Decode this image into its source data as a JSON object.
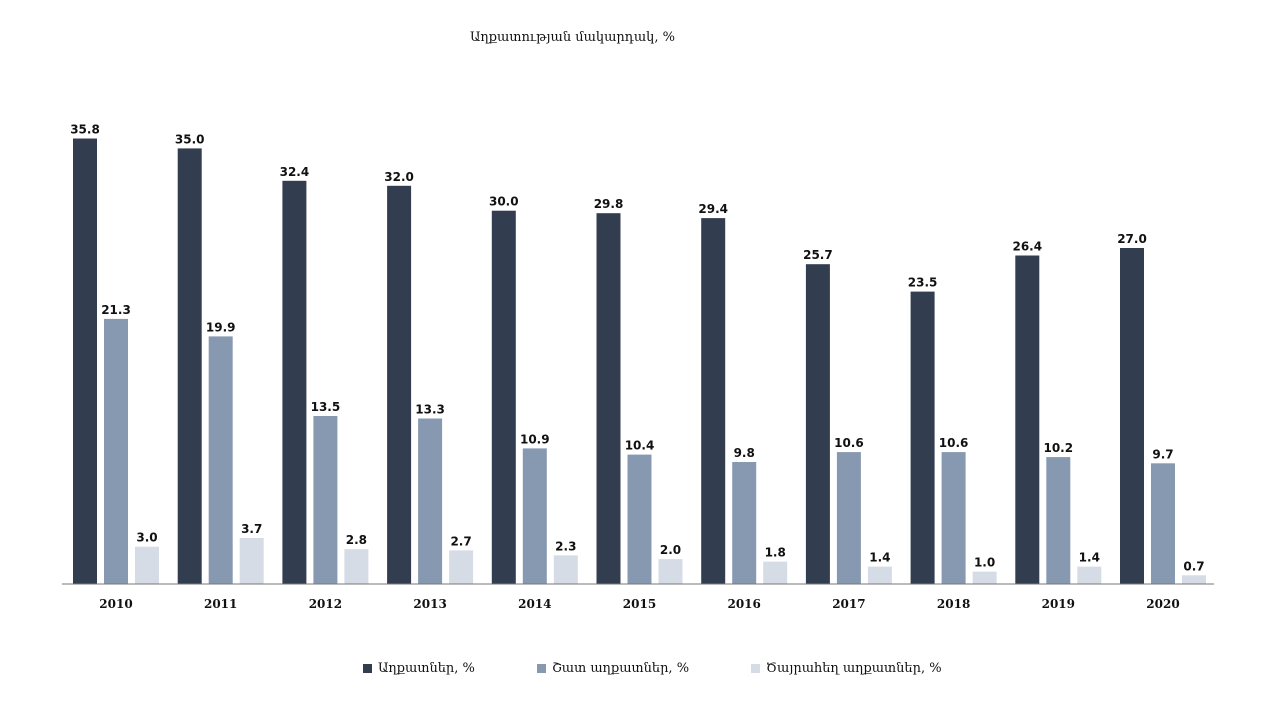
{
  "chart_data": {
    "type": "bar",
    "title": "Աղքատության մակարդակ, %",
    "xlabel": "",
    "ylabel": "",
    "categories": [
      "2010",
      "2011",
      "2012",
      "2013",
      "2014",
      "2015",
      "2016",
      "2017",
      "2018",
      "2019",
      "2020"
    ],
    "series": [
      {
        "name": "Աղքատներ, %",
        "color": "#333d50",
        "values": [
          35.8,
          35.0,
          32.4,
          32.0,
          30.0,
          29.8,
          29.4,
          25.7,
          23.5,
          26.4,
          27.0
        ]
      },
      {
        "name": "Շատ աղքատներ, %",
        "color": "#8799b0",
        "values": [
          21.3,
          19.9,
          13.5,
          13.3,
          10.9,
          10.4,
          9.8,
          10.6,
          10.6,
          10.2,
          9.7
        ]
      },
      {
        "name": "Ծայրահեղ աղքատներ, %",
        "color": "#d6dce6",
        "values": [
          3.0,
          3.7,
          2.8,
          2.7,
          2.3,
          2.0,
          1.8,
          1.4,
          1.0,
          1.4,
          0.7
        ]
      }
    ],
    "ylim": [
      0,
      36
    ],
    "grid": false,
    "legend_position": "bottom"
  }
}
